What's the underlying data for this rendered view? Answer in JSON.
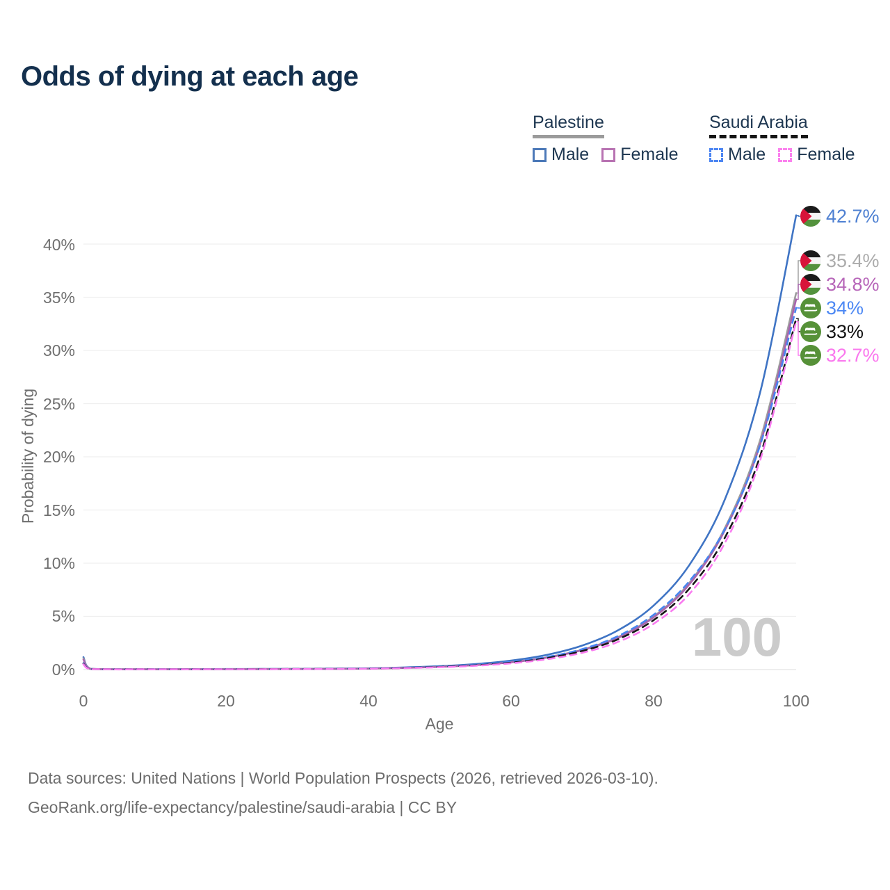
{
  "title": "Odds of dying at each age",
  "legend": {
    "groups": [
      {
        "country": "Palestine",
        "line_style": "solid",
        "underline_color": "#9b9b9b",
        "items": [
          {
            "label": "Male",
            "color": "#4c79b8"
          },
          {
            "label": "Female",
            "color": "#b873b2"
          }
        ]
      },
      {
        "country": "Saudi Arabia",
        "line_style": "dashed",
        "underline_color": "#161616",
        "items": [
          {
            "label": "Male",
            "color": "#4d86f2"
          },
          {
            "label": "Female",
            "color": "#fb82ee"
          }
        ]
      }
    ]
  },
  "chart_data": {
    "type": "line",
    "title": "Odds of dying at each age",
    "xlabel": "Age",
    "ylabel": "Probability of dying",
    "x_ticks": [
      "0",
      "20",
      "40",
      "60",
      "80",
      "100"
    ],
    "y_ticks": [
      "0%",
      "5%",
      "10%",
      "15%",
      "20%",
      "25%",
      "30%",
      "35%",
      "40%"
    ],
    "xlim": [
      0,
      100
    ],
    "ylim_pct": [
      0,
      43
    ],
    "grid": "horizontal",
    "legend_position": "top-right",
    "watermark": "100",
    "ages": [
      0,
      1,
      5,
      10,
      15,
      20,
      25,
      30,
      35,
      40,
      45,
      50,
      55,
      60,
      65,
      70,
      75,
      80,
      85,
      90,
      95,
      100
    ],
    "series": [
      {
        "id": "palestine-male",
        "country": "Palestine",
        "sex": "Male",
        "style": "solid",
        "color": "#3f74c4",
        "label_color": "#4e80d2",
        "flag": "palestine",
        "end_label": "42.7%",
        "values": [
          1.17,
          0.08,
          0.03,
          0.03,
          0.04,
          0.05,
          0.06,
          0.07,
          0.09,
          0.12,
          0.2,
          0.32,
          0.52,
          0.85,
          1.38,
          2.26,
          3.69,
          6.02,
          9.82,
          16.0,
          26.2,
          42.7
        ]
      },
      {
        "id": "palestine-both",
        "country": "Palestine",
        "sex": "Both",
        "style": "solid",
        "color": "#9d9d9d",
        "label_color": "#ababab",
        "flag": "palestine",
        "end_label": "35.4%",
        "values": [
          1.05,
          0.07,
          0.025,
          0.025,
          0.03,
          0.04,
          0.05,
          0.06,
          0.075,
          0.1,
          0.16,
          0.26,
          0.43,
          0.7,
          1.15,
          1.87,
          3.05,
          4.99,
          8.14,
          13.3,
          21.7,
          35.4
        ]
      },
      {
        "id": "palestine-female",
        "country": "Palestine",
        "sex": "Female",
        "style": "solid",
        "color": "#a963ae",
        "label_color": "#b766b9",
        "flag": "palestine",
        "end_label": "34.8%",
        "values": [
          0.95,
          0.06,
          0.02,
          0.02,
          0.025,
          0.03,
          0.04,
          0.05,
          0.07,
          0.095,
          0.155,
          0.26,
          0.42,
          0.68,
          1.12,
          1.83,
          2.98,
          4.9,
          8.0,
          13.1,
          21.3,
          34.8
        ]
      },
      {
        "id": "saudi-arabia-male",
        "country": "Saudi Arabia",
        "sex": "Male",
        "style": "dashed",
        "color": "#4985f0",
        "label_color": "#4c88f4",
        "flag": "saudi-arabia",
        "end_label": "34%",
        "values": [
          0.6,
          0.05,
          0.02,
          0.025,
          0.03,
          0.04,
          0.05,
          0.06,
          0.08,
          0.11,
          0.17,
          0.28,
          0.45,
          0.73,
          1.18,
          1.93,
          3.15,
          5.15,
          8.3,
          13.2,
          21.2,
          34.0
        ]
      },
      {
        "id": "saudi-arabia-both",
        "country": "Saudi Arabia",
        "sex": "Both",
        "style": "dashed",
        "color": "#161616",
        "label_color": "#111111",
        "flag": "saudi-arabia",
        "end_label": "33%",
        "values": [
          0.55,
          0.045,
          0.018,
          0.02,
          0.025,
          0.035,
          0.045,
          0.055,
          0.065,
          0.09,
          0.15,
          0.25,
          0.4,
          0.65,
          1.07,
          1.75,
          2.85,
          4.65,
          7.6,
          12.4,
          20.2,
          33.0
        ]
      },
      {
        "id": "saudi-arabia-female",
        "country": "Saudi Arabia",
        "sex": "Female",
        "style": "dashed",
        "color": "#f97cf0",
        "label_color": "#fa78ee",
        "flag": "saudi-arabia",
        "end_label": "32.7%",
        "values": [
          0.5,
          0.04,
          0.015,
          0.018,
          0.02,
          0.03,
          0.035,
          0.045,
          0.06,
          0.085,
          0.135,
          0.22,
          0.36,
          0.59,
          0.97,
          1.58,
          2.6,
          4.3,
          7.1,
          11.9,
          19.8,
          32.7
        ]
      }
    ]
  },
  "footer": {
    "line1": "Data sources: United Nations | World Population Prospects (2026, retrieved 2026-03-10).",
    "line2": "GeoRank.org/life-expectancy/palestine/saudi-arabia | CC BY"
  }
}
